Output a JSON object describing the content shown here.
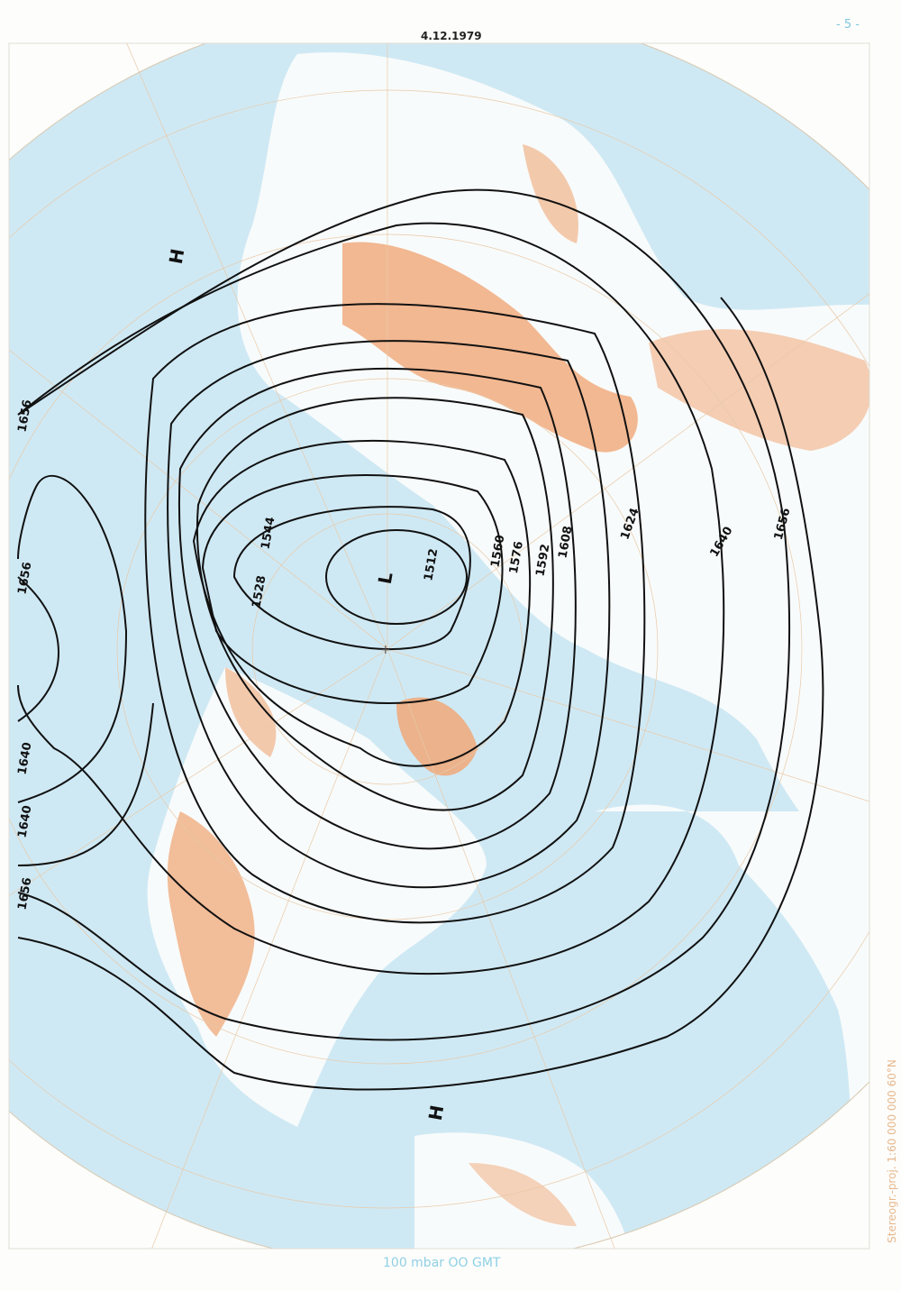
{
  "header": {
    "date": "4.12.1979",
    "page_number": "- 5 -"
  },
  "footer": {
    "level_time": "100 mbar   OO GMT"
  },
  "projection_note": "Stereogr.-proj. 1:60 000 000   60°N",
  "colors": {
    "ocean": "#cfe9f4",
    "land": "#f8fbfb",
    "terrain": "#f0a878",
    "grid": "#e8c9a8",
    "contour": "#111111"
  },
  "pressure_centers": [
    {
      "type": "L",
      "label": "L"
    },
    {
      "type": "H",
      "label": "H"
    },
    {
      "type": "H",
      "label": "H"
    }
  ],
  "contour_labels": [
    "1512",
    "1528",
    "1544",
    "1560",
    "1576",
    "1592",
    "1608",
    "1624",
    "1640",
    "1656",
    "1656",
    "1656",
    "1640",
    "1640",
    "1656"
  ]
}
